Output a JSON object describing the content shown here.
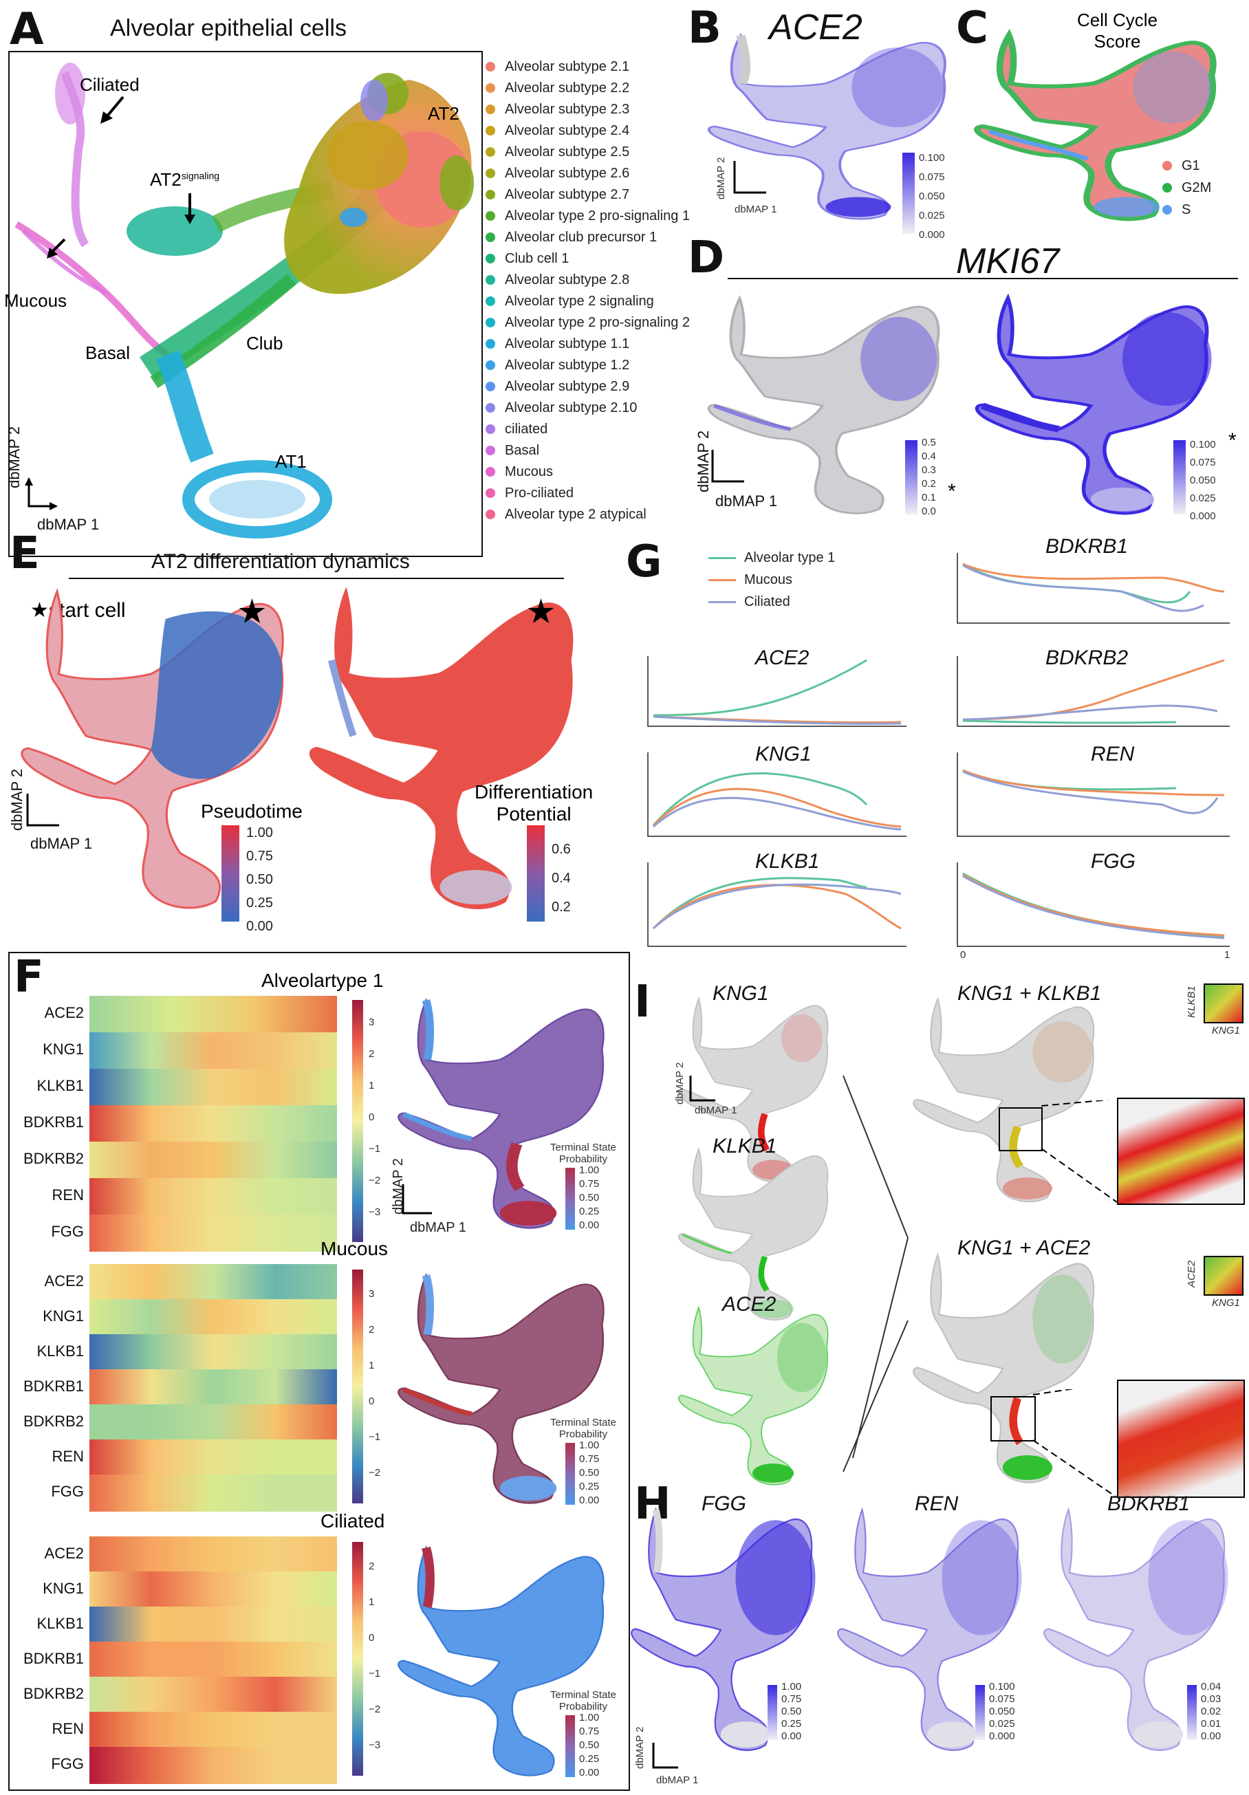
{
  "panels": {
    "A": {
      "letter": "A",
      "title": "Alveolar epithelial cells",
      "annotations": {
        "ciliated": "Ciliated",
        "at2sig": "AT2",
        "at2sig_sup": "signaling",
        "mucous": "Mucous",
        "basal": "Basal",
        "club": "Club",
        "at1": "AT1",
        "at2": "AT2"
      },
      "legend": [
        {
          "label": "Alveolar subtype 2.1",
          "color": "#f07b72"
        },
        {
          "label": "Alveolar subtype 2.2",
          "color": "#e8944c"
        },
        {
          "label": "Alveolar subtype 2.3",
          "color": "#d89b2b"
        },
        {
          "label": "Alveolar subtype 2.4",
          "color": "#c8a11e"
        },
        {
          "label": "Alveolar subtype 2.5",
          "color": "#b8a61a"
        },
        {
          "label": "Alveolar subtype 2.6",
          "color": "#a3a81c"
        },
        {
          "label": "Alveolar subtype 2.7",
          "color": "#86aa1f"
        },
        {
          "label": "Alveolar type 2 pro-signaling 1",
          "color": "#52ad2d"
        },
        {
          "label": "Alveolar club precursor 1",
          "color": "#2fb04a"
        },
        {
          "label": "Club cell 1",
          "color": "#20b274"
        },
        {
          "label": "Alveolar subtype 2.8",
          "color": "#1db598"
        },
        {
          "label": "Alveolar type 2 signaling",
          "color": "#1ab6b2"
        },
        {
          "label": "Alveolar type 2 pro-signaling 2",
          "color": "#1ab4c8"
        },
        {
          "label": "Alveolar subtype 1.1",
          "color": "#22acdc"
        },
        {
          "label": "Alveolar subtype 1.2",
          "color": "#3aa0e8"
        },
        {
          "label": "Alveolar subtype 2.9",
          "color": "#5f92ee"
        },
        {
          "label": "Alveolar subtype 2.10",
          "color": "#8a86ee"
        },
        {
          "label": "ciliated",
          "color": "#ab7ae8"
        },
        {
          "label": "Basal",
          "color": "#cf6ee0"
        },
        {
          "label": "Mucous",
          "color": "#e463cc"
        },
        {
          "label": "Pro-ciliated",
          "color": "#ec62ae"
        },
        {
          "label": "Alveolar type 2 atypical",
          "color": "#f0678e"
        }
      ]
    },
    "B": {
      "letter": "B",
      "gene": "ACE2",
      "cbar_ticks": [
        "0.100",
        "0.075",
        "0.050",
        "0.025",
        "0.000"
      ]
    },
    "C": {
      "letter": "C",
      "title_line1": "Cell Cycle",
      "title_line2": "Score",
      "legend": [
        {
          "label": "G1",
          "color": "#f07b72"
        },
        {
          "label": "G2M",
          "color": "#2cb04a"
        },
        {
          "label": "S",
          "color": "#5b9ef0"
        }
      ]
    },
    "D": {
      "letter": "D",
      "gene": "MKI67",
      "cbar1_ticks": [
        "0.5",
        "0.4",
        "0.3",
        "0.2",
        "0.1",
        "0.0"
      ],
      "cbar2_ticks": [
        "0.100",
        "0.075",
        "0.050",
        "0.025",
        "0.000"
      ],
      "star": "*"
    },
    "E": {
      "letter": "E",
      "title": "AT2 differentiation dynamics",
      "start": "★start cell",
      "pseudotime_label": "Pseudotime",
      "pseudotime_ticks": [
        "1.00",
        "0.75",
        "0.50",
        "0.25",
        "0.00"
      ],
      "diff_label_1": "Differentiation",
      "diff_label_2": "Potential",
      "diff_ticks": [
        "0.6",
        "0.4",
        "0.2"
      ]
    },
    "G": {
      "letter": "G",
      "legend": [
        {
          "label": "Alveolar type 1",
          "color": "#5cc49a"
        },
        {
          "label": "Mucous",
          "color": "#ef8e5a"
        },
        {
          "label": "Ciliated",
          "color": "#8f9fd6"
        }
      ],
      "genes_left": [
        "ACE2",
        "KNG1",
        "KLKB1"
      ],
      "genes_right": [
        "BDKRB1",
        "BDKRB2",
        "REN",
        "FGG"
      ],
      "x_ticks": [
        "0",
        "1"
      ]
    },
    "F": {
      "letter": "F",
      "rows": [
        "ACE2",
        "KNG1",
        "KLKB1",
        "BDKRB1",
        "BDKRB2",
        "REN",
        "FGG"
      ],
      "blocks": [
        {
          "title": "Alveolartype 1",
          "ticks": [
            "3",
            "2",
            "1",
            "0",
            "−1",
            "−2",
            "−3"
          ]
        },
        {
          "title": "Mucous",
          "ticks": [
            "3",
            "2",
            "1",
            "0",
            "−1",
            "−2"
          ]
        },
        {
          "title": "Ciliated",
          "ticks": [
            "2",
            "1",
            "0",
            "−1",
            "−2",
            "−3"
          ]
        }
      ],
      "tsp_label_1": "Terminal State",
      "tsp_label_2": "Probability",
      "tsp_ticks": [
        "1.00",
        "0.75",
        "0.50",
        "0.25",
        "0.00"
      ]
    },
    "I": {
      "letter": "I",
      "genes": [
        "KNG1",
        "KLKB1",
        "ACE2"
      ],
      "combo1": "KNG1 + KLKB1",
      "combo2": "KNG1 + ACE2",
      "key1_y": "KLKB1",
      "key1_x": "KNG1",
      "key2_y": "ACE2",
      "key2_x": "KNG1"
    },
    "H": {
      "letter": "H",
      "genes": [
        "FGG",
        "REN",
        "BDKRB1"
      ],
      "ticks": [
        [
          "1.00",
          "0.75",
          "0.50",
          "0.25",
          "0.00"
        ],
        [
          "0.100",
          "0.075",
          "0.050",
          "0.025",
          "0.000"
        ],
        [
          "0.04",
          "0.03",
          "0.02",
          "0.01",
          "0.00"
        ]
      ]
    }
  },
  "axes": {
    "x": "dbMAP 1",
    "y": "dbMAP 2"
  }
}
